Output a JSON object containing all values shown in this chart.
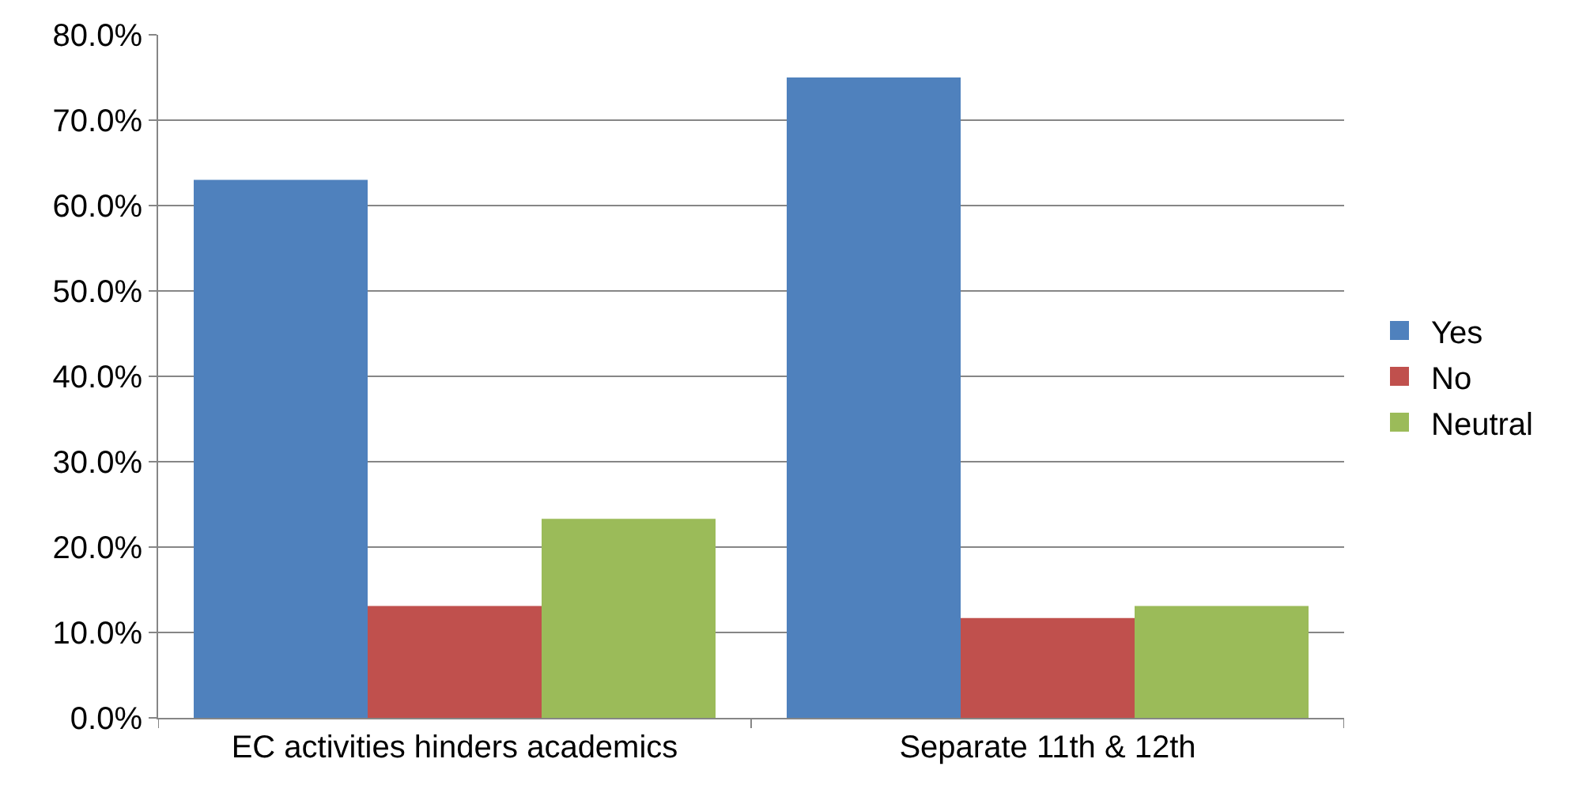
{
  "chart_data": {
    "type": "bar",
    "categories": [
      "EC activities hinders academics",
      "Separate 11th & 12th"
    ],
    "series": [
      {
        "name": "Yes",
        "color": "#4f81bd",
        "values": [
          63.0,
          75.0
        ]
      },
      {
        "name": "No",
        "color": "#c0504d",
        "values": [
          13.1,
          11.7
        ]
      },
      {
        "name": "Neutral",
        "color": "#9bbb59",
        "values": [
          23.3,
          13.1
        ]
      }
    ],
    "ylim": [
      0,
      80
    ],
    "yticks": [
      {
        "value": 0,
        "label": "0.0%"
      },
      {
        "value": 10,
        "label": "10.0%"
      },
      {
        "value": 20,
        "label": "20.0%"
      },
      {
        "value": 30,
        "label": "30.0%"
      },
      {
        "value": 40,
        "label": "40.0%"
      },
      {
        "value": 50,
        "label": "50.0%"
      },
      {
        "value": 60,
        "label": "60.0%"
      },
      {
        "value": 70,
        "label": "70.0%"
      },
      {
        "value": 80,
        "label": "80.0%"
      }
    ],
    "grid": "y",
    "legend": "right"
  }
}
